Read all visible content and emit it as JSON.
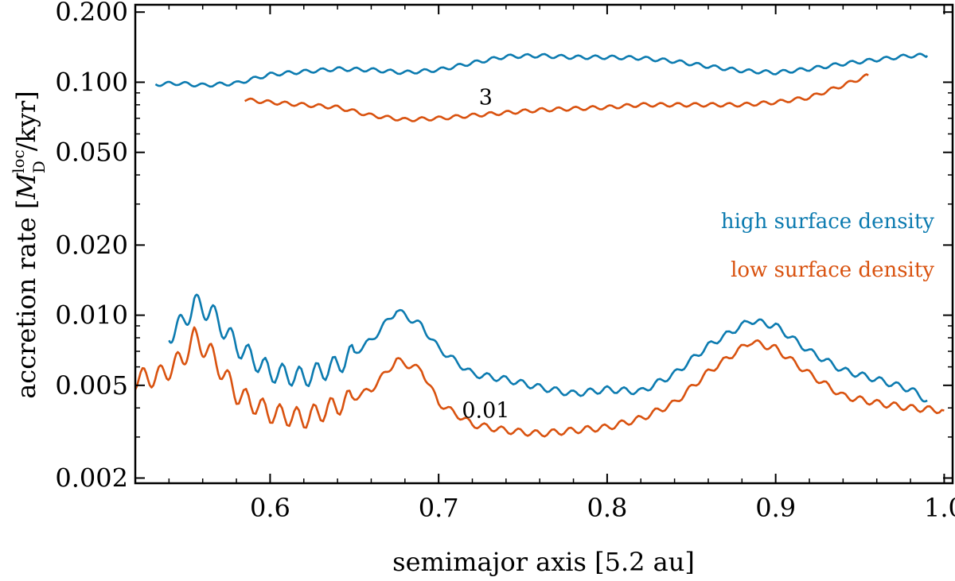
{
  "chart_data": {
    "type": "line",
    "xlabel": "semimajor axis [5.2 au]",
    "ylabel": {
      "prefix": "accretion rate [",
      "symbol": "M",
      "subscript": "D",
      "superscript": "loc",
      "suffix": "/kyr]"
    },
    "xlim": [
      0.52,
      1.005
    ],
    "ylim": [
      0.0019,
      0.215
    ],
    "yscale": "log",
    "x_ticks": [
      {
        "value": 0.6,
        "label": "0.6"
      },
      {
        "value": 0.7,
        "label": "0.7"
      },
      {
        "value": 0.8,
        "label": "0.8"
      },
      {
        "value": 0.9,
        "label": "0.9"
      },
      {
        "value": 1.0,
        "label": "1.0"
      }
    ],
    "y_ticks": [
      {
        "value": 0.002,
        "label": "0.002"
      },
      {
        "value": 0.005,
        "label": "0.005"
      },
      {
        "value": 0.01,
        "label": "0.010"
      },
      {
        "value": 0.02,
        "label": "0.020"
      },
      {
        "value": 0.05,
        "label": "0.050"
      },
      {
        "value": 0.1,
        "label": "0.100"
      },
      {
        "value": 0.2,
        "label": "0.200"
      }
    ],
    "grid": false,
    "legend": {
      "placement": "right",
      "entries": [
        {
          "label": "high surface density",
          "color": "#0c7bb0"
        },
        {
          "label": "low surface density",
          "color": "#d9520f"
        }
      ]
    },
    "annotations": [
      {
        "text": "3",
        "x": 0.728,
        "y": 0.086
      },
      {
        "text": "0.01",
        "x": 0.728,
        "y": 0.0039
      }
    ],
    "series": [
      {
        "group": "3",
        "color": "#0c7bb0",
        "x": [
          0.532,
          0.545,
          0.56,
          0.58,
          0.6,
          0.62,
          0.64,
          0.66,
          0.68,
          0.7,
          0.72,
          0.74,
          0.76,
          0.78,
          0.8,
          0.82,
          0.84,
          0.86,
          0.88,
          0.9,
          0.92,
          0.94,
          0.96,
          0.98,
          0.99
        ],
        "y": [
          0.098,
          0.099,
          0.097,
          0.099,
          0.108,
          0.111,
          0.114,
          0.113,
          0.11,
          0.113,
          0.121,
          0.129,
          0.13,
          0.128,
          0.128,
          0.127,
          0.123,
          0.117,
          0.112,
          0.11,
          0.114,
          0.12,
          0.125,
          0.13,
          0.13
        ]
      },
      {
        "group": "3",
        "color": "#d9520f",
        "x": [
          0.585,
          0.6,
          0.62,
          0.64,
          0.66,
          0.68,
          0.7,
          0.72,
          0.74,
          0.76,
          0.78,
          0.8,
          0.82,
          0.84,
          0.86,
          0.88,
          0.9,
          0.92,
          0.94,
          0.955
        ],
        "y": [
          0.084,
          0.082,
          0.08,
          0.078,
          0.072,
          0.069,
          0.07,
          0.072,
          0.074,
          0.076,
          0.077,
          0.078,
          0.08,
          0.08,
          0.08,
          0.08,
          0.082,
          0.086,
          0.097,
          0.107
        ]
      },
      {
        "group": "0.01",
        "color": "#0c7bb0",
        "x": [
          0.54,
          0.548,
          0.555,
          0.565,
          0.58,
          0.6,
          0.62,
          0.64,
          0.66,
          0.675,
          0.69,
          0.7,
          0.72,
          0.74,
          0.76,
          0.78,
          0.8,
          0.82,
          0.84,
          0.86,
          0.885,
          0.9,
          0.92,
          0.94,
          0.96,
          0.98,
          0.99
        ],
        "y": [
          0.0083,
          0.0092,
          0.0112,
          0.0103,
          0.0074,
          0.0057,
          0.0054,
          0.0061,
          0.0078,
          0.0105,
          0.009,
          0.0072,
          0.0056,
          0.0053,
          0.0049,
          0.0046,
          0.0048,
          0.0047,
          0.0056,
          0.0074,
          0.0095,
          0.009,
          0.007,
          0.0058,
          0.0053,
          0.0048,
          0.0043
        ]
      },
      {
        "group": "0.01",
        "color": "#d9520f",
        "x": [
          0.52,
          0.535,
          0.548,
          0.555,
          0.565,
          0.58,
          0.6,
          0.62,
          0.64,
          0.66,
          0.675,
          0.69,
          0.7,
          0.72,
          0.74,
          0.76,
          0.78,
          0.8,
          0.82,
          0.84,
          0.86,
          0.885,
          0.9,
          0.92,
          0.94,
          0.96,
          0.98,
          1.0
        ],
        "y": [
          0.0053,
          0.0055,
          0.0065,
          0.008,
          0.0068,
          0.0046,
          0.0038,
          0.0036,
          0.0041,
          0.0048,
          0.0064,
          0.0058,
          0.0042,
          0.0034,
          0.0032,
          0.0031,
          0.0032,
          0.0033,
          0.0036,
          0.0042,
          0.0057,
          0.0077,
          0.0072,
          0.0056,
          0.0045,
          0.0042,
          0.004,
          0.0039
        ]
      }
    ]
  }
}
